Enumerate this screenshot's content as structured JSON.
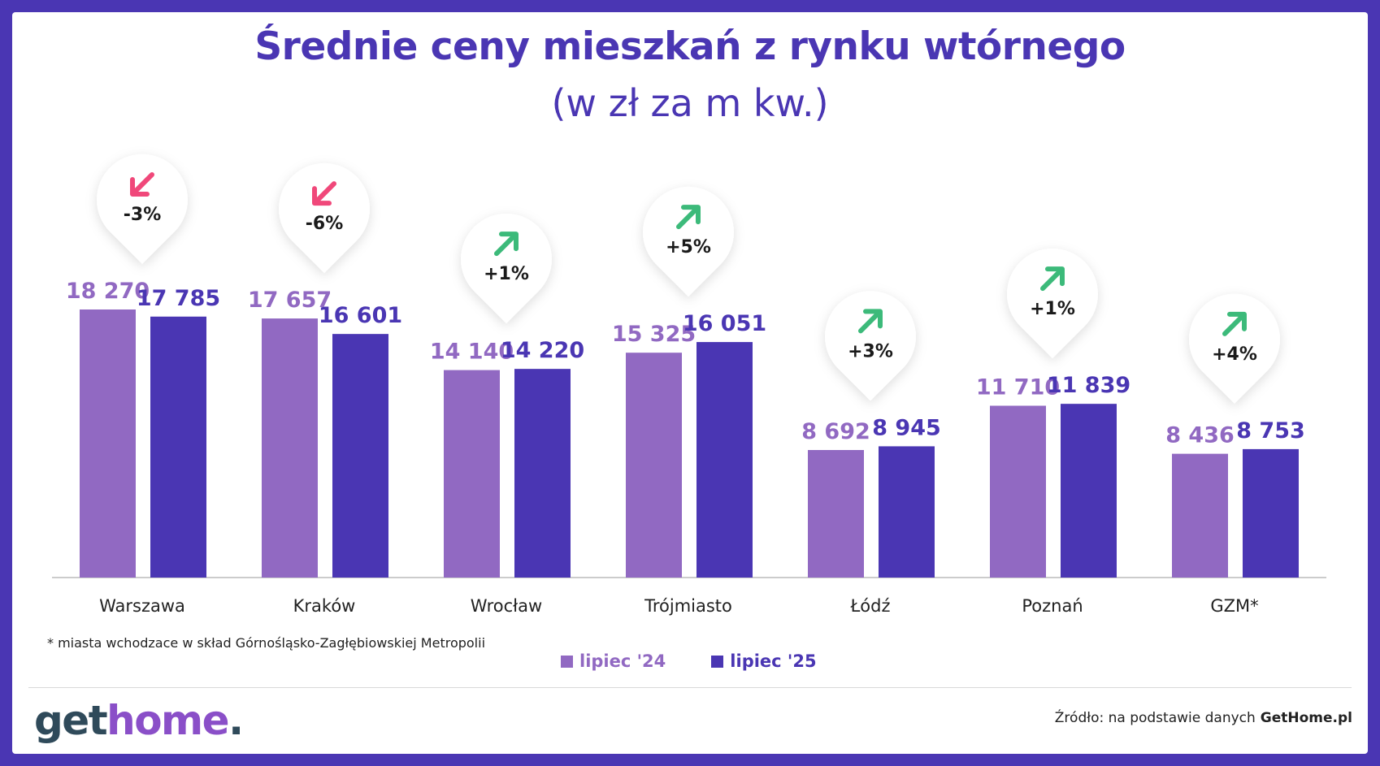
{
  "title": "Średnie ceny mieszkań z rynku wtórnego",
  "subtitle": "(w zł za m kw.)",
  "colors": {
    "series_2024": "#9169c2",
    "series_2025": "#4a36b3",
    "up_arrow": "#3cba7a",
    "down_arrow": "#f0487a",
    "brand": "#4a36b3"
  },
  "chart_data": {
    "type": "bar",
    "categories": [
      "Warszawa",
      "Kraków",
      "Wrocław",
      "Trójmiasto",
      "Łódź",
      "Poznań",
      "GZM*"
    ],
    "series": [
      {
        "name": "lipiec '24",
        "values": [
          18270,
          17657,
          14140,
          15325,
          8692,
          11710,
          8436
        ],
        "labels": [
          "18 270",
          "17 657",
          "14 140",
          "15 325",
          "8 692",
          "11 710",
          "8 436"
        ]
      },
      {
        "name": "lipiec '25",
        "values": [
          17785,
          16601,
          14220,
          16051,
          8945,
          11839,
          8753
        ],
        "labels": [
          "17 785",
          "16 601",
          "14 220",
          "16 051",
          "8 945",
          "11 839",
          "8 753"
        ]
      }
    ],
    "changes": [
      {
        "label": "-3%",
        "direction": "down"
      },
      {
        "label": "-6%",
        "direction": "down"
      },
      {
        "label": "+1%",
        "direction": "up"
      },
      {
        "label": "+5%",
        "direction": "up"
      },
      {
        "label": "+3%",
        "direction": "up"
      },
      {
        "label": "+1%",
        "direction": "up"
      },
      {
        "label": "+4%",
        "direction": "up"
      }
    ],
    "ylim": [
      0,
      18270
    ],
    "grid": false,
    "legend_position": "bottom"
  },
  "footnote": "* miasta wchodzace w skład Górnośląsko-Zagłębiowskiej Metropolii",
  "legend": {
    "item1": "lipiec '24",
    "item2": "lipiec '25"
  },
  "logo": {
    "part1": "get",
    "part2": "home",
    "part3": "."
  },
  "source": {
    "prefix": "Źródło: na podstawie danych",
    "name": "GetHome.pl"
  }
}
